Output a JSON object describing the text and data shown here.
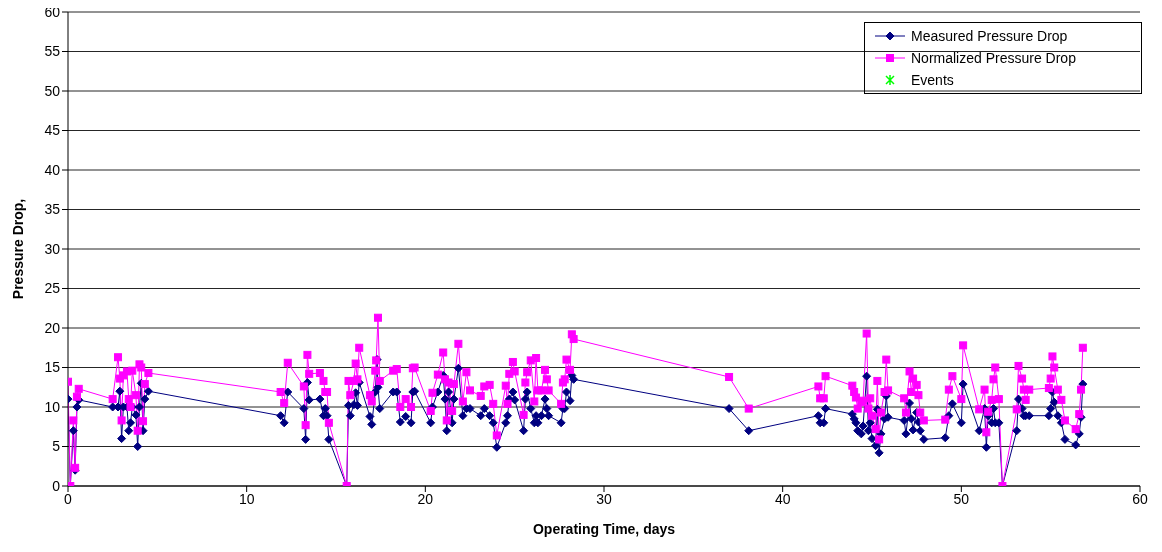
{
  "chart_data": {
    "type": "line",
    "xlabel": "Operating Time, days",
    "ylabel": "Pressure Drop,",
    "xlim": [
      0,
      60
    ],
    "xticks": [
      0,
      10,
      20,
      30,
      40,
      50,
      60
    ],
    "ylim": [
      0,
      60
    ],
    "yticks": [
      0,
      5,
      10,
      15,
      20,
      25,
      30,
      35,
      40,
      45,
      50,
      55,
      60
    ],
    "grid": "y",
    "legend": "top right",
    "line_style": "solid",
    "x": [
      0,
      0.13,
      0.3,
      0.4,
      0.5,
      0.6,
      2.5,
      2.8,
      2.9,
      3.0,
      3.1,
      3.3,
      3.4,
      3.5,
      3.6,
      3.8,
      3.9,
      4.0,
      4.1,
      4.2,
      4.3,
      4.5,
      11.9,
      12.1,
      12.3,
      13.2,
      13.3,
      13.4,
      13.5,
      14.1,
      14.3,
      14.4,
      14.5,
      14.6,
      15.6,
      15.7,
      15.8,
      16.0,
      16.1,
      16.2,
      16.3,
      16.9,
      17.0,
      17.2,
      17.25,
      17.3,
      17.35,
      17.45,
      18.2,
      18.4,
      18.6,
      18.9,
      19.2,
      19.3,
      19.4,
      20.3,
      20.4,
      20.7,
      21.0,
      21.1,
      21.2,
      21.3,
      21.5,
      21.6,
      21.85,
      22.1,
      22.3,
      22.5,
      23.1,
      23.3,
      23.6,
      23.8,
      24.0,
      24.5,
      24.6,
      24.7,
      24.9,
      25.0,
      25.5,
      25.6,
      25.7,
      25.9,
      26.1,
      26.2,
      26.3,
      26.5,
      26.7,
      26.8,
      26.9,
      27.6,
      27.7,
      27.8,
      27.9,
      28.1,
      28.2,
      28.3,
      37.0,
      38.1,
      42.0,
      42.1,
      42.3,
      42.4,
      43.9,
      44.0,
      44.1,
      44.2,
      44.4,
      44.5,
      44.7,
      44.8,
      44.9,
      45.0,
      45.2,
      45.3,
      45.4,
      45.5,
      45.7,
      45.8,
      45.9,
      46.8,
      46.9,
      47.1,
      47.2,
      47.3,
      47.5,
      47.6,
      47.7,
      47.9,
      49.1,
      49.3,
      49.5,
      50.0,
      50.1,
      51.0,
      51.3,
      51.4,
      51.5,
      51.7,
      51.8,
      51.9,
      52.1,
      52.3,
      53.1,
      53.2,
      53.4,
      53.5,
      53.6,
      53.8,
      54.9,
      55.0,
      55.1,
      55.2,
      55.4,
      55.6,
      55.8,
      56.4,
      56.6,
      56.7,
      56.8
    ],
    "series": [
      {
        "name": "Measured Pressure Drop",
        "color": "#000080",
        "marker": "diamond",
        "values": [
          11.0,
          0,
          7.0,
          2.0,
          10.0,
          10.9,
          10.0,
          10.0,
          12.0,
          6.0,
          10.0,
          10.0,
          7.0,
          8.0,
          10.0,
          9.0,
          5.0,
          10.0,
          13.0,
          7.0,
          11.0,
          12.0,
          8.9,
          8.0,
          11.9,
          9.8,
          5.9,
          13.1,
          10.9,
          11.0,
          8.9,
          9.8,
          8.9,
          5.9,
          0,
          10.2,
          8.9,
          10.3,
          11.8,
          10.2,
          13.1,
          8.8,
          7.8,
          11.9,
          null,
          16.0,
          12.5,
          9.8,
          11.9,
          11.9,
          8.1,
          8.8,
          8.0,
          11.9,
          12.0,
          8.0,
          10.0,
          11.9,
          14.0,
          11.0,
          7.0,
          11.9,
          8.0,
          11.0,
          14.9,
          8.9,
          9.8,
          9.8,
          8.9,
          9.8,
          8.9,
          8.0,
          4.9,
          8.0,
          8.9,
          11.0,
          11.9,
          10.9,
          7.0,
          11.0,
          11.9,
          9.8,
          8.0,
          8.9,
          8.0,
          8.9,
          11.0,
          9.8,
          8.9,
          8.0,
          9.8,
          9.8,
          11.9,
          10.8,
          14.0,
          13.5,
          9.8,
          7.0,
          8.9,
          8.0,
          8.0,
          9.8,
          9.1,
          8.5,
          8.0,
          7.0,
          6.6,
          7.6,
          13.9,
          7.0,
          8.0,
          6.0,
          5.1,
          9.7,
          4.2,
          6.6,
          8.5,
          11.4,
          8.7,
          8.3,
          6.6,
          10.5,
          8.5,
          7.1,
          9.3,
          8.1,
          7.0,
          5.9,
          6.1,
          8.9,
          10.4,
          8.0,
          12.9,
          7.0,
          9.8,
          4.9,
          8.9,
          8.0,
          9.8,
          8.0,
          8.0,
          0,
          7.0,
          11.0,
          9.8,
          8.9,
          8.9,
          8.9,
          8.9,
          9.8,
          11.9,
          10.6,
          8.9,
          8.0,
          5.9,
          5.2,
          6.6,
          8.7,
          12.9
        ]
      },
      {
        "name": "Normalized Pressure Drop",
        "color": "#ff00ff",
        "marker": "square",
        "values": [
          13.2,
          0,
          8.3,
          2.3,
          11.3,
          12.3,
          11.0,
          16.3,
          13.6,
          8.3,
          14.0,
          14.5,
          11.0,
          10.0,
          14.6,
          11.5,
          7.0,
          15.4,
          15.0,
          8.2,
          12.9,
          14.3,
          11.9,
          10.5,
          15.6,
          12.6,
          7.7,
          16.6,
          14.2,
          14.3,
          13.3,
          11.9,
          11.9,
          8.0,
          0,
          13.3,
          11.5,
          13.3,
          15.5,
          13.5,
          17.5,
          11.5,
          10.7,
          14.6,
          15.9,
          null,
          21.3,
          13.3,
          14.6,
          14.8,
          10.0,
          11.0,
          10.0,
          14.9,
          15.0,
          9.5,
          11.8,
          14.1,
          16.9,
          13.5,
          8.3,
          13.1,
          9.5,
          12.9,
          18.0,
          10.7,
          14.4,
          12.1,
          11.4,
          12.6,
          12.8,
          10.4,
          6.4,
          12.7,
          10.4,
          14.2,
          15.7,
          14.5,
          9.0,
          13.1,
          14.4,
          15.9,
          10.7,
          16.2,
          12.1,
          12.1,
          14.7,
          13.5,
          12.1,
          10.4,
          13.1,
          13.5,
          16.0,
          14.7,
          19.2,
          18.6,
          13.8,
          9.8,
          12.6,
          11.1,
          11.1,
          13.9,
          12.7,
          11.9,
          11.2,
          9.8,
          10.6,
          10.8,
          19.3,
          9.8,
          11.1,
          8.9,
          7.2,
          13.3,
          5.9,
          9.3,
          11.9,
          16.0,
          12.1,
          11.1,
          9.3,
          14.5,
          11.9,
          13.6,
          12.8,
          11.5,
          9.3,
          8.3,
          8.4,
          12.2,
          13.9,
          11.0,
          17.8,
          9.7,
          12.2,
          6.8,
          9.4,
          10.9,
          13.5,
          15.0,
          11.0,
          0,
          9.7,
          15.2,
          13.6,
          12.2,
          10.9,
          12.2,
          12.4,
          13.6,
          16.4,
          15.0,
          12.2,
          10.9,
          8.3,
          7.2,
          9.1,
          12.2,
          17.5
        ]
      },
      {
        "name": "Events",
        "color": "#00ff00",
        "marker": "star",
        "values": [
          null,
          null,
          null,
          null,
          null,
          null,
          null,
          null,
          null,
          null,
          null,
          null,
          null,
          null,
          null,
          null,
          null,
          null,
          null,
          null,
          null,
          null,
          null,
          null,
          null,
          null,
          null,
          null,
          null,
          null,
          null,
          null,
          null,
          null,
          null,
          null,
          null,
          null,
          null,
          null,
          null,
          null,
          null,
          null,
          null,
          null,
          null,
          null,
          null,
          null,
          null,
          null,
          null,
          null,
          null,
          null,
          null,
          null,
          null,
          null,
          null,
          null,
          null,
          null,
          null,
          null,
          null,
          null,
          null,
          null,
          null,
          null,
          null,
          null,
          null,
          null,
          null,
          null,
          null,
          null,
          null,
          null,
          null,
          null,
          null,
          null,
          null,
          null,
          null,
          null,
          null,
          null,
          null,
          null,
          null,
          null,
          null,
          null,
          null,
          null,
          null,
          null,
          null,
          null,
          null,
          null,
          null,
          null,
          null,
          null,
          null,
          null,
          null,
          null,
          null,
          null,
          null,
          null,
          null,
          null,
          null,
          null,
          null,
          null,
          null,
          null,
          null,
          null,
          null,
          null,
          null,
          null,
          null,
          null,
          null,
          null,
          null,
          null,
          null,
          null,
          null,
          null,
          null,
          null,
          null,
          null,
          null,
          null,
          null,
          null,
          null,
          null,
          null,
          null,
          null,
          null,
          null,
          null,
          null
        ]
      }
    ]
  }
}
